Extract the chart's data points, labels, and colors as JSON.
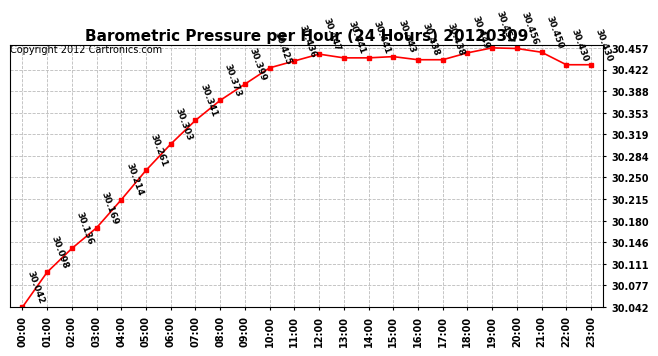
{
  "title": "Barometric Pressure per Hour (24 Hours) 20120309",
  "copyright": "Copyright 2012 Cartronics.com",
  "hours": [
    0,
    1,
    2,
    3,
    4,
    5,
    6,
    7,
    8,
    9,
    10,
    11,
    12,
    13,
    14,
    15,
    16,
    17,
    18,
    19,
    20,
    21,
    22,
    23
  ],
  "hour_labels": [
    "00:00",
    "01:00",
    "02:00",
    "03:00",
    "04:00",
    "05:00",
    "06:00",
    "07:00",
    "08:00",
    "09:00",
    "10:00",
    "11:00",
    "12:00",
    "13:00",
    "14:00",
    "15:00",
    "16:00",
    "17:00",
    "18:00",
    "19:00",
    "20:00",
    "21:00",
    "22:00",
    "23:00"
  ],
  "values": [
    30.042,
    30.098,
    30.136,
    30.169,
    30.214,
    30.261,
    30.303,
    30.341,
    30.373,
    30.399,
    30.425,
    30.436,
    30.447,
    30.441,
    30.441,
    30.443,
    30.438,
    30.438,
    30.449,
    30.457,
    30.456,
    30.45,
    30.43,
    30.43
  ],
  "yticks": [
    30.042,
    30.077,
    30.111,
    30.146,
    30.18,
    30.215,
    30.25,
    30.284,
    30.319,
    30.353,
    30.388,
    30.422,
    30.457
  ],
  "ymin": 30.042,
  "ymax": 30.462,
  "line_color": "red",
  "marker_color": "red",
  "bg_color": "white",
  "grid_color": "#bbbbbb",
  "title_fontsize": 11,
  "copyright_fontsize": 7,
  "label_fontsize": 6.5,
  "tick_fontsize": 7
}
